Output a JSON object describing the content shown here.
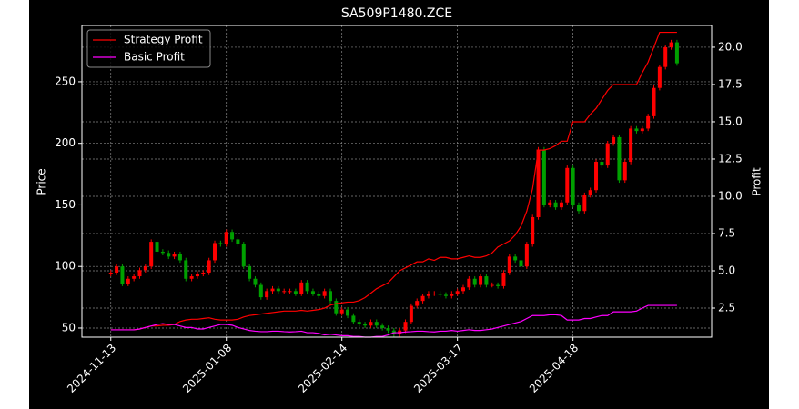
{
  "chart_data": {
    "type": "candlestick",
    "title": "SA509P1480.ZCE",
    "ylabel": "Price",
    "y2label": "Profit",
    "categories": [
      "2024-11-13",
      null,
      null,
      null,
      null,
      null,
      null,
      null,
      null,
      null,
      null,
      null,
      null,
      null,
      null,
      null,
      null,
      null,
      null,
      null,
      "2025-01-08",
      null,
      null,
      null,
      null,
      null,
      null,
      null,
      null,
      null,
      null,
      null,
      null,
      null,
      null,
      null,
      null,
      null,
      null,
      null,
      "2025-02-14",
      null,
      null,
      null,
      null,
      null,
      null,
      null,
      null,
      null,
      null,
      null,
      null,
      null,
      null,
      null,
      null,
      null,
      null,
      null,
      "2025-03-17",
      null,
      null,
      null,
      null,
      null,
      null,
      null,
      null,
      null,
      null,
      null,
      null,
      null,
      null,
      null,
      null,
      null,
      null,
      null,
      "2025-04-18",
      null,
      null,
      null,
      null,
      null,
      null,
      null,
      null,
      null,
      null,
      null,
      null,
      null,
      null,
      null,
      null,
      null,
      null
    ],
    "open": [
      94,
      95,
      100,
      86,
      90,
      92,
      97,
      100,
      120,
      112,
      111,
      108,
      110,
      105,
      90,
      92,
      94,
      95,
      105,
      119,
      118,
      128,
      122,
      118,
      100,
      90,
      85,
      75,
      80,
      82,
      80,
      80,
      80,
      78,
      87,
      80,
      78,
      76,
      80,
      72,
      62,
      65,
      60,
      55,
      53,
      52,
      55,
      52,
      50,
      48,
      45,
      48,
      55,
      68,
      72,
      76,
      78,
      78,
      77,
      76,
      78,
      80,
      83,
      90,
      85,
      92,
      85,
      85,
      84,
      95,
      108,
      105,
      100,
      118,
      140,
      195,
      150,
      152,
      148,
      152,
      180,
      150,
      145,
      158,
      162,
      185,
      182,
      200,
      205,
      170,
      185,
      212,
      210,
      212,
      222,
      245,
      262,
      278,
      282
    ],
    "high": [
      97,
      102,
      102,
      92,
      94,
      99,
      102,
      122,
      122,
      114,
      113,
      112,
      112,
      107,
      94,
      96,
      97,
      107,
      121,
      121,
      130,
      130,
      124,
      120,
      102,
      92,
      87,
      82,
      84,
      84,
      82,
      82,
      82,
      89,
      89,
      82,
      80,
      82,
      82,
      74,
      67,
      67,
      62,
      57,
      55,
      57,
      57,
      54,
      52,
      50,
      50,
      57,
      70,
      74,
      78,
      80,
      80,
      80,
      79,
      80,
      82,
      85,
      92,
      92,
      94,
      94,
      87,
      87,
      97,
      110,
      110,
      107,
      120,
      142,
      197,
      197,
      154,
      154,
      154,
      182,
      182,
      152,
      160,
      164,
      187,
      187,
      202,
      207,
      207,
      187,
      214,
      214,
      214,
      224,
      247,
      264,
      280,
      284,
      284
    ],
    "low": [
      92,
      93,
      84,
      84,
      88,
      90,
      95,
      98,
      110,
      109,
      106,
      106,
      103,
      88,
      88,
      90,
      92,
      93,
      103,
      116,
      116,
      120,
      116,
      98,
      88,
      83,
      73,
      73,
      78,
      78,
      78,
      78,
      76,
      76,
      78,
      76,
      74,
      74,
      70,
      60,
      60,
      58,
      53,
      51,
      50,
      50,
      50,
      48,
      46,
      43,
      43,
      46,
      53,
      66,
      70,
      74,
      76,
      75,
      74,
      74,
      76,
      78,
      81,
      83,
      83,
      83,
      83,
      82,
      82,
      93,
      103,
      98,
      98,
      116,
      138,
      148,
      148,
      146,
      146,
      150,
      148,
      143,
      143,
      156,
      160,
      180,
      180,
      198,
      168,
      168,
      183,
      208,
      208,
      210,
      220,
      243,
      260,
      276,
      263
    ],
    "close": [
      95,
      100,
      86,
      90,
      92,
      97,
      100,
      120,
      112,
      111,
      108,
      110,
      105,
      90,
      92,
      94,
      95,
      105,
      119,
      118,
      128,
      122,
      118,
      100,
      90,
      85,
      75,
      80,
      82,
      80,
      80,
      80,
      78,
      87,
      80,
      78,
      76,
      80,
      72,
      62,
      65,
      60,
      55,
      53,
      52,
      55,
      52,
      50,
      48,
      45,
      48,
      55,
      68,
      72,
      76,
      78,
      78,
      77,
      76,
      78,
      80,
      83,
      90,
      85,
      92,
      85,
      85,
      84,
      95,
      108,
      105,
      100,
      118,
      140,
      195,
      150,
      152,
      148,
      152,
      180,
      150,
      145,
      158,
      162,
      185,
      182,
      200,
      205,
      170,
      185,
      212,
      210,
      212,
      222,
      245,
      262,
      278,
      282,
      265
    ],
    "up_color": "#ff0000",
    "down_color": "#00a000",
    "series": [
      {
        "name": "Strategy Profit",
        "color": "#ff0000",
        "axis": "y2",
        "values": [
          1.04,
          1.04,
          1.04,
          1.04,
          1.04,
          1.1,
          1.2,
          1.3,
          1.3,
          1.35,
          1.35,
          1.4,
          1.6,
          1.7,
          1.75,
          1.75,
          1.8,
          1.85,
          1.75,
          1.7,
          1.7,
          1.7,
          1.75,
          1.9,
          2.0,
          2.05,
          2.1,
          2.15,
          2.2,
          2.25,
          2.3,
          2.3,
          2.3,
          2.35,
          2.3,
          2.35,
          2.4,
          2.5,
          2.7,
          2.8,
          2.85,
          2.9,
          2.9,
          3.0,
          3.2,
          3.5,
          3.8,
          4.0,
          4.2,
          4.6,
          5.0,
          5.2,
          5.4,
          5.6,
          5.6,
          5.8,
          5.7,
          5.9,
          5.9,
          5.8,
          5.8,
          5.9,
          6.0,
          5.9,
          5.9,
          6.0,
          6.2,
          6.6,
          6.8,
          7.0,
          7.4,
          8.0,
          9.0,
          10.5,
          13.1,
          13.1,
          13.2,
          13.4,
          13.7,
          13.7,
          15.0,
          15.0,
          15.0,
          15.5,
          15.9,
          16.5,
          17.1,
          17.5,
          17.5,
          17.5,
          17.5,
          17.5,
          18.3,
          19.0,
          20.0,
          21.0,
          21.0,
          21.0,
          21.0
        ]
      },
      {
        "name": "Basic Profit",
        "color": "#ff00ff",
        "axis": "y2",
        "values": [
          1.04,
          1.04,
          1.04,
          1.04,
          1.04,
          1.1,
          1.2,
          1.3,
          1.4,
          1.46,
          1.4,
          1.4,
          1.3,
          1.2,
          1.2,
          1.1,
          1.1,
          1.2,
          1.3,
          1.4,
          1.4,
          1.35,
          1.2,
          1.1,
          1.0,
          0.95,
          0.92,
          0.92,
          0.95,
          0.95,
          0.92,
          0.9,
          0.92,
          0.95,
          0.85,
          0.85,
          0.8,
          0.7,
          0.75,
          0.7,
          0.65,
          0.65,
          0.6,
          0.6,
          0.55,
          0.55,
          0.6,
          0.6,
          0.7,
          0.85,
          0.85,
          0.9,
          0.92,
          0.95,
          0.95,
          0.92,
          0.9,
          0.95,
          0.95,
          1.0,
          0.95,
          1.0,
          1.05,
          1.0,
          1.0,
          1.05,
          1.1,
          1.2,
          1.3,
          1.4,
          1.5,
          1.6,
          1.8,
          2.0,
          2.0,
          2.0,
          2.05,
          2.05,
          2.0,
          1.7,
          1.7,
          1.7,
          1.8,
          1.8,
          1.9,
          2.0,
          2.0,
          2.25,
          2.25,
          2.25,
          2.25,
          2.3,
          2.5,
          2.68,
          2.68,
          2.68,
          2.68,
          2.68,
          2.68
        ]
      }
    ],
    "xlim": [
      -5,
      104
    ],
    "ylim": [
      42.6,
      295.7
    ],
    "yticks": [
      50,
      100,
      150,
      200,
      250
    ],
    "y2lim": [
      0.55,
      21.46
    ],
    "y2ticks": [
      2.5,
      {
        "value": 5,
        "label": "5.0"
      },
      7.5,
      {
        "value": 10,
        "label": "10.0"
      },
      12.5,
      {
        "value": 15,
        "label": "15.0"
      },
      17.5,
      {
        "value": 20,
        "label": "20.0"
      }
    ],
    "grid": true,
    "legend": "upper left"
  }
}
